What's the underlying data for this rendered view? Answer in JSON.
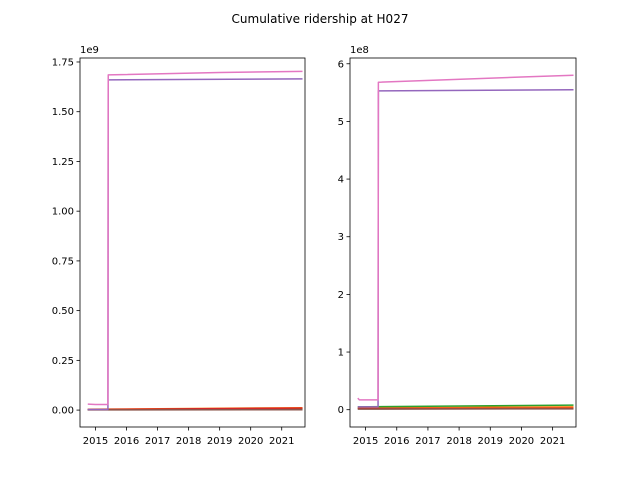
{
  "chart_data": {
    "title": "Cumulative ridership at H027",
    "subplots": [
      {
        "type": "line",
        "offset_text": "1e9",
        "xlim": [
          2014.5,
          2021.75
        ],
        "ylim": [
          -0.085,
          1.77
        ],
        "xticks": [
          2015,
          2016,
          2017,
          2018,
          2019,
          2020,
          2021
        ],
        "xtick_labels": [
          "2015",
          "2016",
          "2017",
          "2018",
          "2019",
          "2020",
          "2021"
        ],
        "yticks": [
          0,
          0.25,
          0.5,
          0.75,
          1.0,
          1.25,
          1.5,
          1.75
        ],
        "ytick_labels": [
          "0.00",
          "0.25",
          "0.50",
          "0.75",
          "1.00",
          "1.25",
          "1.50",
          "1.75"
        ],
        "series": [
          {
            "color": "#1f77b4",
            "x": [
              2014.75,
              2021.67
            ],
            "y": [
              0.003,
              0.004
            ]
          },
          {
            "color": "#ff7f0e",
            "x": [
              2014.75,
              2021.67
            ],
            "y": [
              0.004,
              0.012
            ]
          },
          {
            "color": "#2ca02c",
            "x": [
              2014.75,
              2021.67
            ],
            "y": [
              0.002,
              0.009
            ]
          },
          {
            "color": "#d62728",
            "x": [
              2014.75,
              2021.67
            ],
            "y": [
              0.003,
              0.01
            ]
          },
          {
            "color": "#8c564b",
            "x": [
              2014.75,
              2021.67
            ],
            "y": [
              0.001,
              0.002
            ]
          },
          {
            "color": "#9467bd",
            "x": [
              2014.75,
              2015.4,
              2015.41,
              2021.67
            ],
            "y": [
              0.003,
              0.003,
              1.66,
              1.665
            ]
          },
          {
            "color": "#e377c2",
            "x": [
              2014.75,
              2015.0,
              2015.4,
              2015.41,
              2019.0,
              2021.67
            ],
            "y": [
              0.03,
              0.028,
              0.028,
              1.685,
              1.697,
              1.703
            ]
          }
        ]
      },
      {
        "type": "line",
        "offset_text": "1e8",
        "xlim": [
          2014.5,
          2021.75
        ],
        "ylim": [
          -0.3,
          6.1
        ],
        "xticks": [
          2015,
          2016,
          2017,
          2018,
          2019,
          2020,
          2021
        ],
        "xtick_labels": [
          "2015",
          "2016",
          "2017",
          "2018",
          "2019",
          "2020",
          "2021"
        ],
        "yticks": [
          0,
          1,
          2,
          3,
          4,
          5,
          6
        ],
        "ytick_labels": [
          "0",
          "1",
          "2",
          "3",
          "4",
          "5",
          "6"
        ],
        "series": [
          {
            "color": "#1f77b4",
            "x": [
              2014.75,
              2021.67
            ],
            "y": [
              0.02,
              0.03
            ]
          },
          {
            "color": "#ff7f0e",
            "x": [
              2014.75,
              2021.67
            ],
            "y": [
              0.03,
              0.05
            ]
          },
          {
            "color": "#2ca02c",
            "x": [
              2014.75,
              2021.67
            ],
            "y": [
              0.05,
              0.08
            ]
          },
          {
            "color": "#d62728",
            "x": [
              2014.75,
              2021.67
            ],
            "y": [
              0.02,
              0.025
            ]
          },
          {
            "color": "#8c564b",
            "x": [
              2014.75,
              2021.67
            ],
            "y": [
              0.01,
              0.015
            ]
          },
          {
            "color": "#9467bd",
            "x": [
              2014.75,
              2015.4,
              2015.41,
              2021.67
            ],
            "y": [
              0.05,
              0.05,
              5.53,
              5.55
            ]
          },
          {
            "color": "#e377c2",
            "x": [
              2014.75,
              2014.8,
              2015.4,
              2015.41,
              2020.0,
              2021.67
            ],
            "y": [
              0.2,
              0.17,
              0.17,
              5.68,
              5.77,
              5.8
            ]
          }
        ]
      }
    ]
  }
}
